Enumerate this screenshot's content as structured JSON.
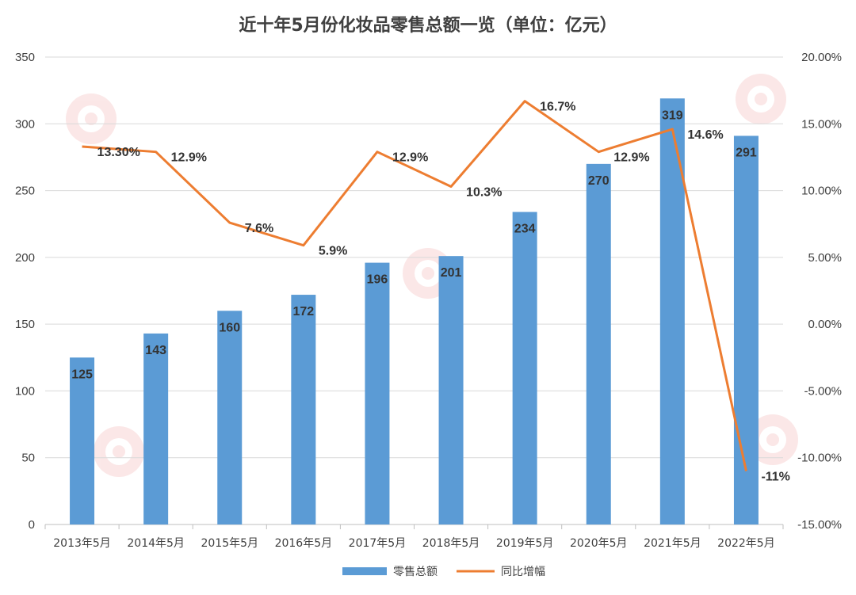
{
  "chart_data": {
    "type": "bar",
    "title": "近十年5月份化妆品零售总额一览（单位：亿元）",
    "categories": [
      "2013年5月",
      "2014年5月",
      "2015年5月",
      "2016年5月",
      "2017年5月",
      "2018年5月",
      "2019年5月",
      "2020年5月",
      "2021年5月",
      "2022年5月"
    ],
    "series": [
      {
        "name": "零售总额",
        "type": "bar",
        "axis": "left",
        "color": "#5B9BD5",
        "values": [
          125,
          143,
          160,
          172,
          196,
          201,
          234,
          270,
          319,
          291
        ],
        "labels": [
          "125",
          "143",
          "160",
          "172",
          "196",
          "201",
          "234",
          "270",
          "319",
          "291"
        ]
      },
      {
        "name": "同比增幅",
        "type": "line",
        "axis": "right",
        "color": "#ED7D31",
        "values": [
          13.3,
          12.9,
          7.6,
          5.9,
          12.9,
          10.3,
          16.7,
          12.9,
          14.6,
          -11
        ],
        "labels": [
          "13.30%",
          "12.9%",
          "7.6%",
          "5.9%",
          "12.9%",
          "10.3%",
          "16.7%",
          "12.9%",
          "14.6%",
          "-11%"
        ]
      }
    ],
    "y_left": {
      "min": 0,
      "max": 350,
      "step": 50,
      "ticks": [
        "0",
        "50",
        "100",
        "150",
        "200",
        "250",
        "300",
        "350"
      ]
    },
    "y_right": {
      "min": -15,
      "max": 20,
      "step": 5,
      "ticks": [
        "-15.00%",
        "-10.00%",
        "-5.00%",
        "0.00%",
        "5.00%",
        "10.00%",
        "15.00%",
        "20.00%"
      ]
    },
    "grid": true,
    "legend_position": "bottom",
    "watermark_icon": "red-camera-logo-watermark"
  }
}
